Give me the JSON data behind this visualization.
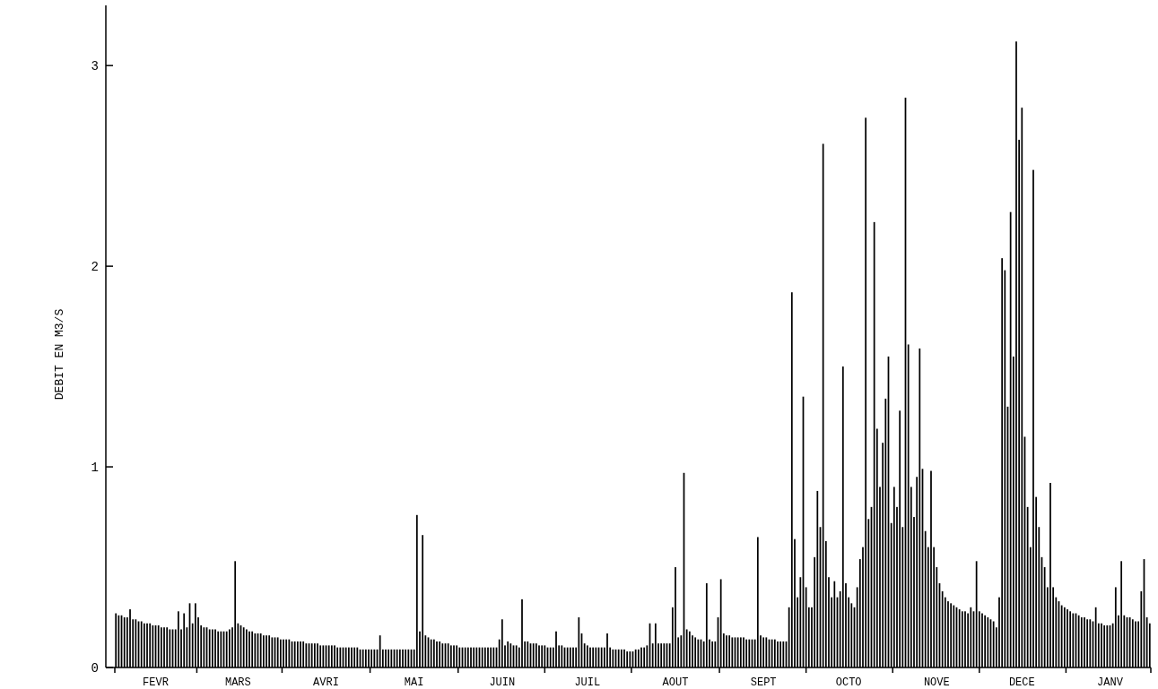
{
  "chart_data": {
    "type": "bar",
    "ylabel": "DEBIT EN M3/S",
    "color": "#000000",
    "ylim": [
      0,
      3.3
    ],
    "yticks": [
      0,
      1,
      2,
      3
    ],
    "categories": [
      null,
      null,
      null,
      null,
      null,
      null,
      null,
      null,
      null,
      null,
      null,
      null,
      null,
      null,
      "FEVR",
      null,
      null,
      null,
      null,
      null,
      null,
      null,
      null,
      null,
      null,
      null,
      null,
      null,
      null,
      null,
      null,
      null,
      null,
      null,
      null,
      null,
      null,
      null,
      null,
      null,
      null,
      null,
      null,
      "MARS",
      null,
      null,
      null,
      null,
      null,
      null,
      null,
      null,
      null,
      null,
      null,
      null,
      null,
      null,
      null,
      null,
      null,
      null,
      null,
      null,
      null,
      null,
      null,
      null,
      null,
      null,
      null,
      null,
      null,
      null,
      "AVRI",
      null,
      null,
      null,
      null,
      null,
      null,
      null,
      null,
      null,
      null,
      null,
      null,
      null,
      null,
      null,
      null,
      null,
      null,
      null,
      null,
      null,
      null,
      null,
      null,
      null,
      null,
      null,
      null,
      null,
      null,
      "MAI",
      null,
      null,
      null,
      null,
      null,
      null,
      null,
      null,
      null,
      null,
      null,
      null,
      null,
      null,
      null,
      null,
      null,
      null,
      null,
      null,
      null,
      null,
      null,
      null,
      null,
      null,
      null,
      null,
      null,
      null,
      "JUIN",
      null,
      null,
      null,
      null,
      null,
      null,
      null,
      null,
      null,
      null,
      null,
      null,
      null,
      null,
      null,
      null,
      null,
      null,
      null,
      null,
      null,
      null,
      null,
      null,
      null,
      null,
      null,
      null,
      null,
      "JUIL",
      null,
      null,
      null,
      null,
      null,
      null,
      null,
      null,
      null,
      null,
      null,
      null,
      null,
      null,
      null,
      null,
      null,
      null,
      null,
      null,
      null,
      null,
      null,
      null,
      null,
      null,
      null,
      null,
      null,
      null,
      "AOUT",
      null,
      null,
      null,
      null,
      null,
      null,
      null,
      null,
      null,
      null,
      null,
      null,
      null,
      null,
      null,
      null,
      null,
      null,
      null,
      null,
      null,
      null,
      null,
      null,
      null,
      null,
      null,
      null,
      null,
      null,
      "SEPT",
      null,
      null,
      null,
      null,
      null,
      null,
      null,
      null,
      null,
      null,
      null,
      null,
      null,
      null,
      null,
      null,
      null,
      null,
      null,
      null,
      null,
      null,
      null,
      null,
      null,
      null,
      null,
      null,
      null,
      "OCTO",
      null,
      null,
      null,
      null,
      null,
      null,
      null,
      null,
      null,
      null,
      null,
      null,
      null,
      null,
      null,
      null,
      null,
      null,
      null,
      null,
      null,
      null,
      null,
      null,
      null,
      null,
      null,
      null,
      null,
      null,
      "NOVE",
      null,
      null,
      null,
      null,
      null,
      null,
      null,
      null,
      null,
      null,
      null,
      null,
      null,
      null,
      null,
      null,
      null,
      null,
      null,
      null,
      null,
      null,
      null,
      null,
      null,
      null,
      null,
      null,
      null,
      "DECE",
      null,
      null,
      null,
      null,
      null,
      null,
      null,
      null,
      null,
      null,
      null,
      null,
      null,
      null,
      null,
      null,
      null,
      null,
      null,
      null,
      null,
      null,
      null,
      null,
      null,
      null,
      null,
      null,
      null,
      null,
      "JANV",
      null,
      null,
      null,
      null,
      null,
      null,
      null,
      null,
      null,
      null,
      null,
      null,
      null,
      null
    ],
    "values": [
      0.27,
      0.26,
      0.26,
      0.25,
      0.25,
      0.29,
      0.24,
      0.24,
      0.23,
      0.23,
      0.22,
      0.22,
      0.22,
      0.21,
      0.21,
      0.21,
      0.2,
      0.2,
      0.2,
      0.19,
      0.19,
      0.19,
      0.28,
      0.19,
      0.27,
      0.2,
      0.32,
      0.22,
      0.32,
      0.25,
      0.21,
      0.2,
      0.2,
      0.19,
      0.19,
      0.19,
      0.18,
      0.18,
      0.18,
      0.18,
      0.19,
      0.2,
      0.53,
      0.22,
      0.21,
      0.2,
      0.19,
      0.18,
      0.18,
      0.17,
      0.17,
      0.17,
      0.16,
      0.16,
      0.16,
      0.15,
      0.15,
      0.15,
      0.14,
      0.14,
      0.14,
      0.14,
      0.13,
      0.13,
      0.13,
      0.13,
      0.13,
      0.12,
      0.12,
      0.12,
      0.12,
      0.12,
      0.11,
      0.11,
      0.11,
      0.11,
      0.11,
      0.11,
      0.1,
      0.1,
      0.1,
      0.1,
      0.1,
      0.1,
      0.1,
      0.1,
      0.09,
      0.09,
      0.09,
      0.09,
      0.09,
      0.09,
      0.09,
      0.16,
      0.09,
      0.09,
      0.09,
      0.09,
      0.09,
      0.09,
      0.09,
      0.09,
      0.09,
      0.09,
      0.09,
      0.09,
      0.76,
      0.18,
      0.66,
      0.16,
      0.15,
      0.14,
      0.14,
      0.13,
      0.13,
      0.12,
      0.12,
      0.12,
      0.11,
      0.11,
      0.11,
      0.1,
      0.1,
      0.1,
      0.1,
      0.1,
      0.1,
      0.1,
      0.1,
      0.1,
      0.1,
      0.1,
      0.1,
      0.1,
      0.1,
      0.14,
      0.24,
      0.11,
      0.13,
      0.12,
      0.11,
      0.11,
      0.1,
      0.34,
      0.13,
      0.13,
      0.12,
      0.12,
      0.12,
      0.11,
      0.11,
      0.11,
      0.1,
      0.1,
      0.1,
      0.18,
      0.11,
      0.11,
      0.1,
      0.1,
      0.1,
      0.1,
      0.1,
      0.25,
      0.17,
      0.12,
      0.11,
      0.1,
      0.1,
      0.1,
      0.1,
      0.1,
      0.1,
      0.17,
      0.1,
      0.09,
      0.09,
      0.09,
      0.09,
      0.09,
      0.08,
      0.08,
      0.08,
      0.09,
      0.09,
      0.1,
      0.1,
      0.11,
      0.22,
      0.12,
      0.22,
      0.12,
      0.12,
      0.12,
      0.12,
      0.12,
      0.3,
      0.5,
      0.15,
      0.16,
      0.97,
      0.19,
      0.18,
      0.16,
      0.15,
      0.14,
      0.14,
      0.13,
      0.42,
      0.14,
      0.13,
      0.13,
      0.25,
      0.44,
      0.17,
      0.16,
      0.16,
      0.15,
      0.15,
      0.15,
      0.15,
      0.15,
      0.14,
      0.14,
      0.14,
      0.14,
      0.65,
      0.16,
      0.15,
      0.15,
      0.14,
      0.14,
      0.14,
      0.13,
      0.13,
      0.13,
      0.13,
      0.3,
      1.87,
      0.64,
      0.35,
      0.45,
      1.35,
      0.4,
      0.3,
      0.3,
      0.55,
      0.88,
      0.7,
      2.61,
      0.63,
      0.45,
      0.35,
      0.43,
      0.35,
      0.38,
      1.5,
      0.42,
      0.35,
      0.32,
      0.3,
      0.4,
      0.54,
      0.6,
      2.74,
      0.74,
      0.8,
      2.22,
      1.19,
      0.9,
      1.12,
      1.34,
      1.55,
      0.72,
      0.9,
      0.8,
      1.28,
      0.7,
      2.84,
      1.61,
      0.9,
      0.75,
      0.95,
      1.59,
      0.99,
      0.68,
      0.6,
      0.98,
      0.6,
      0.5,
      0.42,
      0.38,
      0.35,
      0.33,
      0.32,
      0.31,
      0.3,
      0.29,
      0.28,
      0.28,
      0.27,
      0.3,
      0.28,
      0.53,
      0.28,
      0.27,
      0.26,
      0.25,
      0.24,
      0.23,
      0.2,
      0.35,
      2.04,
      1.98,
      1.3,
      2.27,
      1.55,
      3.12,
      2.63,
      2.79,
      1.15,
      0.8,
      0.6,
      2.48,
      0.85,
      0.7,
      0.55,
      0.5,
      0.4,
      0.92,
      0.4,
      0.35,
      0.33,
      0.31,
      0.3,
      0.29,
      0.28,
      0.27,
      0.27,
      0.26,
      0.25,
      0.25,
      0.24,
      0.24,
      0.23,
      0.3,
      0.22,
      0.22,
      0.21,
      0.21,
      0.21,
      0.22,
      0.4,
      0.26,
      0.53,
      0.26,
      0.25,
      0.25,
      0.24,
      0.23,
      0.23,
      0.38,
      0.54,
      0.25,
      0.22
    ]
  }
}
